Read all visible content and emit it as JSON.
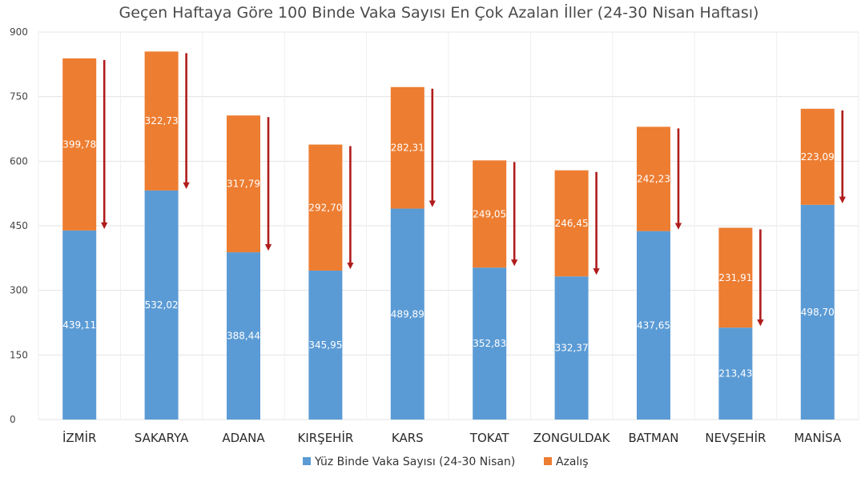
{
  "chart_data": {
    "type": "bar",
    "stacked": true,
    "title": "Geçen Haftaya Göre 100 Binde Vaka Sayısı En Çok Azalan İller (24-30 Nisan Haftası)",
    "categories": [
      "İZMİR",
      "SAKARYA",
      "ADANA",
      "KIRŞEHİR",
      "KARS",
      "TOKAT",
      "ZONGULDAK",
      "BATMAN",
      "NEVŞEHİR",
      "MANİSA"
    ],
    "series": [
      {
        "name": "Yüz Binde Vaka Sayısı (24-30 Nisan)",
        "color": "#5b9bd5",
        "values": [
          439.11,
          532.02,
          388.44,
          345.95,
          489.89,
          352.83,
          332.37,
          437.65,
          213.43,
          498.7
        ],
        "labels": [
          "439,11",
          "532,02",
          "388,44",
          "345,95",
          "489,89",
          "352,83",
          "332,37",
          "437,65",
          "213,43",
          "498,70"
        ]
      },
      {
        "name": "Azalış",
        "color": "#ed7d31",
        "values": [
          399.78,
          322.73,
          317.79,
          292.7,
          282.31,
          249.05,
          246.45,
          242.23,
          231.91,
          223.09
        ],
        "labels": [
          "399,78",
          "322,73",
          "317,79",
          "292,70",
          "282,31",
          "249,05",
          "246,45",
          "242,23",
          "231,91",
          "223,09"
        ]
      }
    ],
    "ylim": [
      0,
      900
    ],
    "yticks": [
      0,
      150,
      300,
      450,
      600,
      750,
      900
    ],
    "grid": true,
    "legend": "bottom",
    "arrow_color": "#b01c1c"
  }
}
